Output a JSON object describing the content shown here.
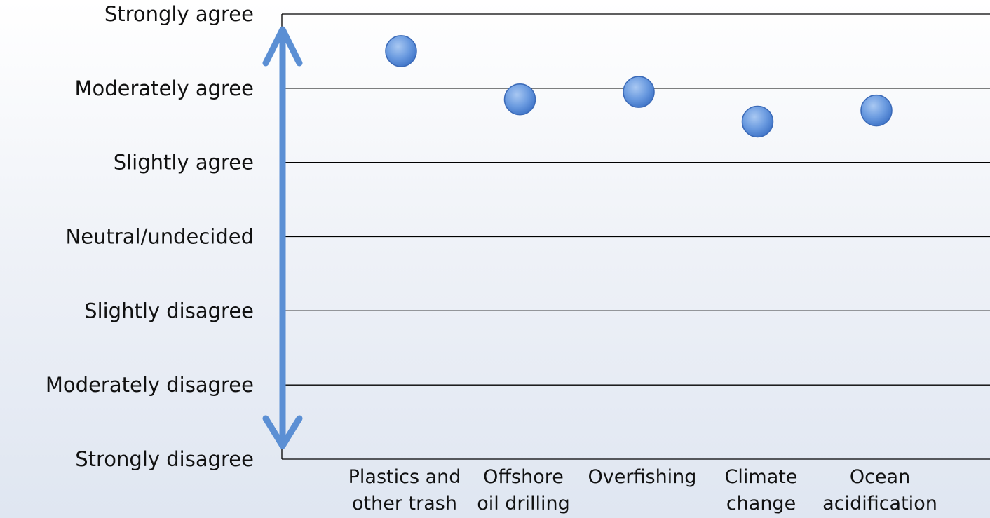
{
  "chart_data": {
    "type": "scatter",
    "y_levels": [
      "Strongly disagree",
      "Moderately disagree",
      "Slightly disagree",
      "Neutral/undecided",
      "Slightly agree",
      "Moderately agree",
      "Strongly agree"
    ],
    "ylim": [
      1,
      7
    ],
    "categories": [
      [
        "Plastics and",
        "other trash"
      ],
      [
        "Offshore",
        "oil drilling"
      ],
      [
        "Overfishing"
      ],
      [
        "Climate",
        "change"
      ],
      [
        "Ocean",
        "acidification"
      ]
    ],
    "values": [
      6.5,
      5.85,
      5.95,
      5.55,
      5.7
    ],
    "grid": true,
    "colors": {
      "point_fill": "#5b8ed8",
      "point_stroke": "#3b6ab8",
      "arrow": "#5b8fd4",
      "grid": "#000000"
    }
  }
}
